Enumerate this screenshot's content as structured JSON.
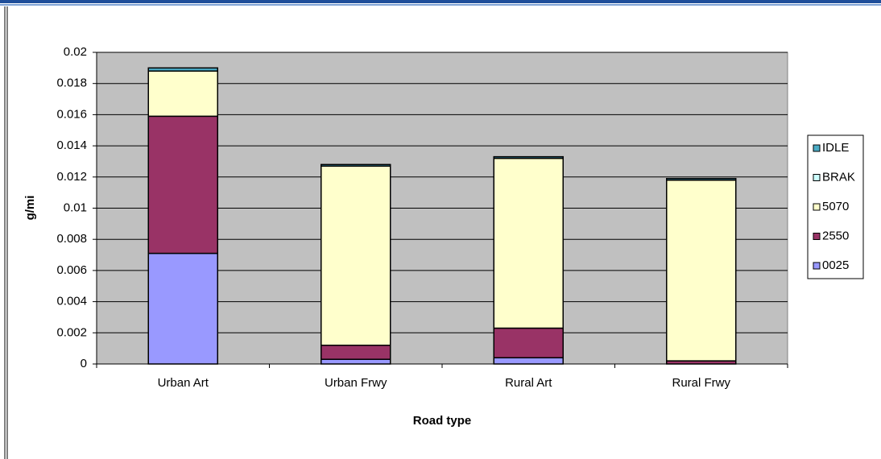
{
  "chart_data": {
    "type": "stacked_bar",
    "categories": [
      "Urban Art",
      "Urban Frwy",
      "Rural Art",
      "Rural Frwy"
    ],
    "series": [
      {
        "name": "0025",
        "color": "#9999ff",
        "values": [
          0.0071,
          0.0003,
          0.0004,
          0.0
        ]
      },
      {
        "name": "2550",
        "color": "#993366",
        "values": [
          0.0088,
          0.0009,
          0.0019,
          0.0002
        ]
      },
      {
        "name": "5070",
        "color": "#ffffcc",
        "values": [
          0.0029,
          0.0115,
          0.0109,
          0.0116
        ]
      },
      {
        "name": "BRAK",
        "color": "#ccffff",
        "values": [
          0.0,
          0.0,
          0.0,
          0.0
        ]
      },
      {
        "name": "IDLE",
        "color": "#4bacc6",
        "values": [
          0.0002,
          0.0001,
          0.0001,
          0.0001
        ]
      }
    ],
    "ylabel": "g/mi",
    "xlabel": "Road type",
    "ylim": [
      0,
      0.02
    ],
    "yticks": [
      0,
      0.002,
      0.004,
      0.006,
      0.008,
      0.01,
      0.012,
      0.014,
      0.016,
      0.018,
      0.02
    ],
    "grid": true,
    "legend": "right"
  }
}
